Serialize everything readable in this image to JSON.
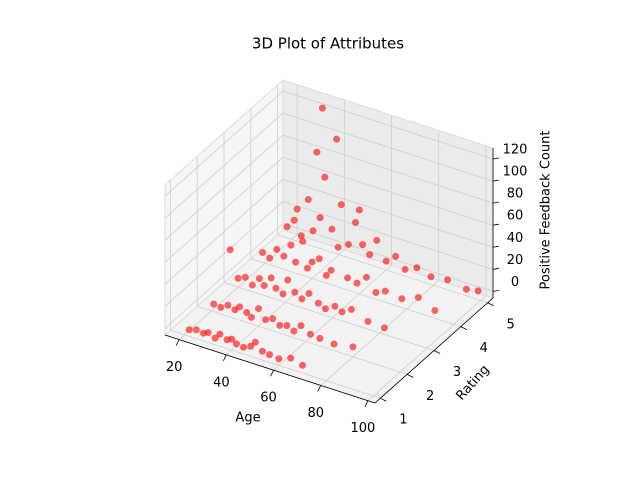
{
  "chart_data": {
    "type": "scatter3d",
    "title": "3D Plot of Attributes",
    "xlabel": "Age",
    "ylabel": "Rating",
    "zlabel": "Positive Feedback Count",
    "xlim": [
      14,
      103
    ],
    "ylim": [
      0.8,
      5.2
    ],
    "zlim": [
      -6,
      130
    ],
    "xticks": [
      20,
      40,
      60,
      80,
      100
    ],
    "yticks": [
      1,
      2,
      3,
      4,
      5
    ],
    "zticks": [
      0,
      20,
      40,
      60,
      80,
      100,
      120
    ],
    "grid": true,
    "series": [
      {
        "color": "#ff0000",
        "x": [
          22,
          25,
          28,
          30,
          33,
          35,
          38,
          40,
          42,
          45,
          48,
          50,
          53,
          56,
          60,
          65,
          70,
          21,
          24,
          27,
          30,
          32,
          35,
          37,
          40,
          43,
          46,
          49,
          52,
          55,
          58,
          62,
          66,
          72,
          80,
          20,
          23,
          26,
          29,
          31,
          34,
          36,
          39,
          41,
          44,
          47,
          50,
          54,
          57,
          61,
          64,
          68,
          75,
          82,
          19,
          22,
          25,
          28,
          31,
          33,
          36,
          38,
          40,
          43,
          46,
          48,
          51,
          55,
          59,
          63,
          67,
          71,
          78,
          85,
          92,
          18,
          21,
          24,
          27,
          29,
          32,
          34,
          37,
          39,
          41,
          44,
          47,
          50,
          53,
          56,
          60,
          64,
          68,
          73,
          79,
          86,
          94,
          99,
          42,
          33,
          45,
          60,
          28
        ],
        "y": [
          1,
          1,
          1,
          1,
          1,
          1,
          1,
          1,
          1,
          1,
          1,
          1,
          1,
          1,
          1,
          1,
          1,
          2,
          2,
          2,
          2,
          2,
          2,
          2,
          2,
          2,
          2,
          2,
          2,
          2,
          2,
          2,
          2,
          2,
          2,
          3,
          3,
          3,
          3,
          3,
          3,
          3,
          3,
          3,
          3,
          3,
          3,
          3,
          3,
          3,
          3,
          3,
          3,
          3,
          4,
          4,
          4,
          4,
          4,
          4,
          4,
          4,
          4,
          4,
          4,
          4,
          4,
          4,
          4,
          4,
          4,
          4,
          4,
          4,
          4,
          5,
          5,
          5,
          5,
          5,
          5,
          5,
          5,
          5,
          5,
          5,
          5,
          5,
          5,
          5,
          5,
          5,
          5,
          5,
          5,
          5,
          5,
          5,
          4,
          5,
          3,
          4,
          2
        ],
        "z": [
          0,
          2,
          1,
          3,
          0,
          5,
          2,
          4,
          1,
          0,
          3,
          8,
          2,
          1,
          0,
          4,
          1,
          1,
          0,
          4,
          2,
          6,
          3,
          0,
          10,
          2,
          5,
          1,
          3,
          0,
          7,
          2,
          1,
          0,
          3,
          2,
          5,
          0,
          8,
          3,
          12,
          4,
          1,
          15,
          6,
          2,
          9,
          3,
          0,
          5,
          2,
          7,
          1,
          0,
          3,
          0,
          10,
          6,
          18,
          4,
          25,
          2,
          9,
          14,
          1,
          7,
          30,
          5,
          3,
          11,
          0,
          4,
          2,
          8,
          1,
          4,
          12,
          0,
          35,
          8,
          22,
          60,
          15,
          98,
          40,
          6,
          28,
          10,
          3,
          18,
          2,
          9,
          0,
          5,
          1,
          3,
          0,
          2,
          110,
          122,
          82,
          70,
          55
        ]
      }
    ]
  }
}
